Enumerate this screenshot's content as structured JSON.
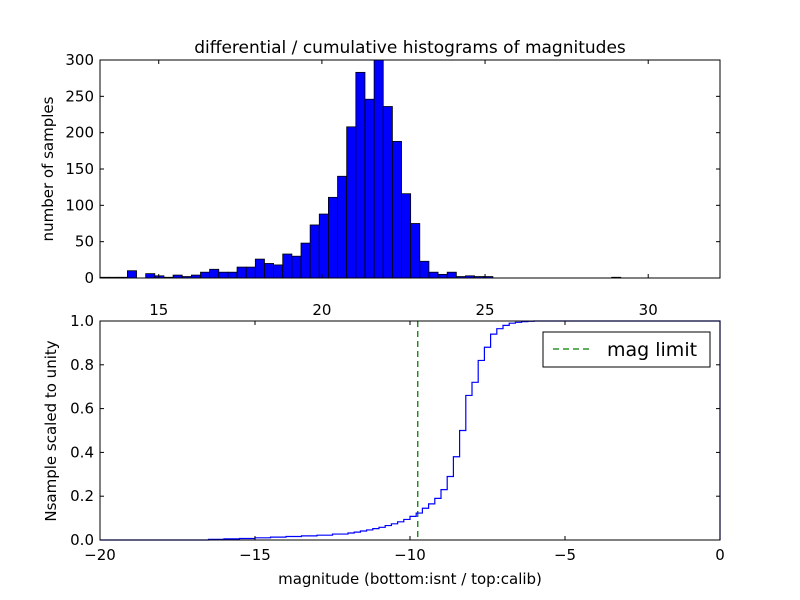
{
  "chart_data": [
    {
      "type": "bar",
      "title": "differential / cumulative histograms of magnitudes",
      "xlabel": "",
      "ylabel": "number of samples",
      "xlim": [
        13.2,
        32.2
      ],
      "ylim": [
        0,
        300
      ],
      "xticks": [
        15,
        20,
        25,
        30
      ],
      "yticks": [
        0,
        50,
        100,
        150,
        200,
        250,
        300
      ],
      "bar_color": "#0000ff",
      "bins_start": 13.2,
      "bin_width": 0.28,
      "values": [
        1,
        1,
        1,
        10,
        0,
        6,
        3,
        1,
        4,
        2,
        4,
        8,
        12,
        8,
        8,
        15,
        15,
        26,
        20,
        18,
        33,
        30,
        48,
        73,
        88,
        111,
        140,
        208,
        283,
        246,
        300,
        236,
        188,
        116,
        75,
        23,
        8,
        5,
        8,
        2,
        3,
        2,
        2,
        0,
        0,
        0,
        0,
        0,
        0,
        0,
        0,
        0,
        0,
        0,
        0,
        0,
        1,
        0
      ]
    },
    {
      "type": "line",
      "title": "",
      "xlabel": "magnitude (bottom:isnt / top:calib)",
      "ylabel": "Nsample scaled to unity",
      "xlim": [
        -20,
        0
      ],
      "ylim": [
        0,
        1
      ],
      "xticks": [
        -20,
        -15,
        -10,
        -5,
        0
      ],
      "yticks": [
        0.0,
        0.2,
        0.4,
        0.6,
        0.8,
        1.0
      ],
      "grid": false,
      "legend_position": "top-right",
      "mag_limit": -9.75,
      "series": [
        {
          "name": "",
          "color": "#0000ff",
          "step": true,
          "x": [
            -20.0,
            -17.0,
            -16.5,
            -16.0,
            -15.5,
            -15.0,
            -14.5,
            -14.0,
            -13.5,
            -13.0,
            -12.5,
            -12.0,
            -11.8,
            -11.6,
            -11.4,
            -11.2,
            -11.0,
            -10.8,
            -10.6,
            -10.4,
            -10.2,
            -10.0,
            -9.8,
            -9.6,
            -9.4,
            -9.2,
            -9.0,
            -8.8,
            -8.6,
            -8.4,
            -8.2,
            -8.0,
            -7.8,
            -7.6,
            -7.4,
            -7.2,
            -7.0,
            -6.8,
            -6.6,
            -6.4,
            -6.2,
            -6.0,
            -5.8,
            -5.6,
            0.0
          ],
          "y": [
            0.0,
            0.0,
            0.003,
            0.005,
            0.007,
            0.01,
            0.013,
            0.016,
            0.019,
            0.022,
            0.027,
            0.032,
            0.036,
            0.041,
            0.046,
            0.052,
            0.058,
            0.066,
            0.074,
            0.083,
            0.094,
            0.108,
            0.123,
            0.145,
            0.165,
            0.19,
            0.23,
            0.29,
            0.38,
            0.5,
            0.66,
            0.72,
            0.82,
            0.88,
            0.94,
            0.965,
            0.98,
            0.99,
            0.994,
            0.997,
            0.999,
            1.0,
            1.0,
            1.0,
            1.0
          ]
        },
        {
          "name": "mag limit",
          "color": "#007f00",
          "dashed": true
        }
      ]
    }
  ]
}
